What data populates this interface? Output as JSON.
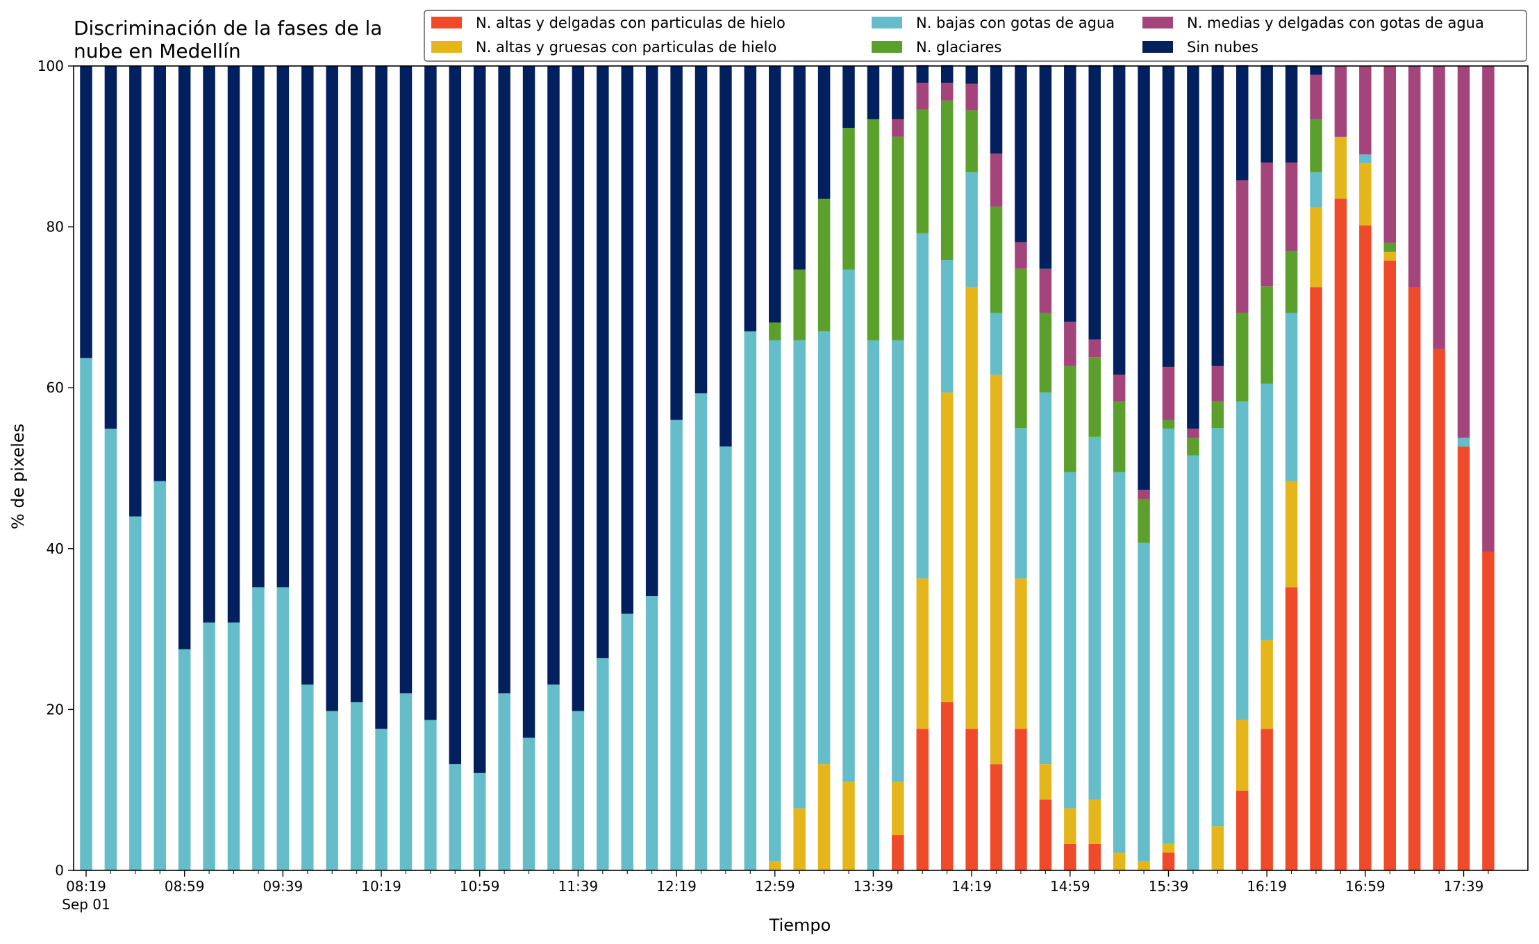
{
  "chart_data": {
    "type": "bar",
    "stacked": true,
    "title": "Discriminación de la fases de la\nnube en Medellín",
    "xlabel": "Tiempo",
    "ylabel": "% de pixeles",
    "ylim": [
      0,
      100
    ],
    "yticks": [
      "0",
      "20",
      "40",
      "60",
      "80",
      "100"
    ],
    "xtick_labels": [
      "08:19",
      "08:59",
      "09:39",
      "10:19",
      "10:59",
      "11:39",
      "12:19",
      "12:59",
      "13:39",
      "14:19",
      "14:59",
      "15:39",
      "16:19",
      "16:59",
      "17:39"
    ],
    "xtick_date": "Sep 01",
    "x": [
      "08:19",
      "08:29",
      "08:39",
      "08:49",
      "08:59",
      "09:09",
      "09:19",
      "09:29",
      "09:39",
      "09:49",
      "09:59",
      "10:09",
      "10:19",
      "10:29",
      "10:39",
      "10:49",
      "10:59",
      "11:09",
      "11:19",
      "11:29",
      "11:39",
      "11:49",
      "11:59",
      "12:09",
      "12:19",
      "12:29",
      "12:39",
      "12:49",
      "12:59",
      "13:09",
      "13:19",
      "13:29",
      "13:39",
      "13:49",
      "13:59",
      "14:09",
      "14:19",
      "14:29",
      "14:39",
      "14:49",
      "14:59",
      "15:09",
      "15:19",
      "15:29",
      "15:39",
      "15:49",
      "15:59",
      "16:09",
      "16:19",
      "16:29",
      "16:39",
      "16:49",
      "16:59",
      "17:09",
      "17:19",
      "17:29",
      "17:39",
      "17:49"
    ],
    "legend": {
      "placement": "top-right",
      "columns": 3
    },
    "series": [
      {
        "name": "N. altas y delgadas con particulas de hielo",
        "color": "#ef4a2a",
        "values": [
          0,
          0,
          0,
          0,
          0,
          0,
          0,
          0,
          0,
          0,
          0,
          0,
          0,
          0,
          0,
          0,
          0,
          0,
          0,
          0,
          0,
          0,
          0,
          0,
          0,
          0,
          0,
          0,
          0,
          0,
          0,
          0,
          0,
          4.4,
          17.6,
          20.9,
          17.6,
          13.2,
          17.6,
          8.8,
          3.3,
          3.3,
          0,
          0,
          2.2,
          0,
          0,
          9.9,
          17.6,
          35.2,
          72.5,
          83.5,
          80.2,
          75.8,
          72.5,
          64.8,
          52.7,
          39.6
        ]
      },
      {
        "name": "N. altas y gruesas con particulas de hielo",
        "color": "#e5b61c",
        "values": [
          0,
          0,
          0,
          0,
          0,
          0,
          0,
          0,
          0,
          0,
          0,
          0,
          0,
          0,
          0,
          0,
          0,
          0,
          0,
          0,
          0,
          0,
          0,
          0,
          0,
          0,
          0,
          0,
          1.1,
          7.7,
          13.2,
          11.0,
          0,
          6.6,
          18.7,
          38.5,
          54.9,
          48.4,
          18.7,
          4.4,
          4.4,
          5.5,
          2.2,
          1.1,
          1.1,
          0,
          5.5,
          8.8,
          11.0,
          13.2,
          9.9,
          7.7,
          7.7,
          1.1,
          0,
          0,
          0,
          0
        ]
      },
      {
        "name": "N. bajas con gotas de agua",
        "color": "#65bdc9",
        "values": [
          63.7,
          54.9,
          44.0,
          48.4,
          27.5,
          30.8,
          30.8,
          35.2,
          35.2,
          23.1,
          19.8,
          20.9,
          17.6,
          22.0,
          18.7,
          13.2,
          12.1,
          22.0,
          16.5,
          23.1,
          19.8,
          26.4,
          31.9,
          34.1,
          56.0,
          59.3,
          52.7,
          67.0,
          64.8,
          58.2,
          53.8,
          63.7,
          65.9,
          54.9,
          42.9,
          16.5,
          14.3,
          7.7,
          18.7,
          46.2,
          41.8,
          45.1,
          47.3,
          39.6,
          51.6,
          51.6,
          49.5,
          39.6,
          31.9,
          20.9,
          4.4,
          0,
          1.1,
          0,
          0,
          0,
          1.1,
          0
        ]
      },
      {
        "name": "N. glaciares",
        "color": "#5b9f2c",
        "values": [
          0,
          0,
          0,
          0,
          0,
          0,
          0,
          0,
          0,
          0,
          0,
          0,
          0,
          0,
          0,
          0,
          0,
          0,
          0,
          0,
          0,
          0,
          0,
          0,
          0,
          0,
          0,
          0,
          2.2,
          8.8,
          16.5,
          17.6,
          27.5,
          25.3,
          15.4,
          19.8,
          7.7,
          13.2,
          19.8,
          9.9,
          13.2,
          9.9,
          8.8,
          5.5,
          1.1,
          2.2,
          3.3,
          11.0,
          12.1,
          7.7,
          6.6,
          0,
          0,
          1.1,
          0,
          0,
          0,
          0
        ]
      },
      {
        "name": "N. medias y delgadas con gotas de agua",
        "color": "#a3457b",
        "values": [
          0,
          0,
          0,
          0,
          0,
          0,
          0,
          0,
          0,
          0,
          0,
          0,
          0,
          0,
          0,
          0,
          0,
          0,
          0,
          0,
          0,
          0,
          0,
          0,
          0,
          0,
          0,
          0,
          0,
          0,
          0,
          0,
          0,
          2.2,
          3.3,
          2.2,
          3.3,
          6.6,
          3.3,
          5.5,
          5.5,
          2.2,
          3.3,
          1.1,
          6.6,
          1.1,
          4.4,
          16.5,
          15.4,
          11.0,
          5.5,
          8.8,
          11.0,
          22.0,
          27.5,
          35.2,
          46.2,
          60.4
        ]
      },
      {
        "name": "Sin nubes",
        "color": "#03205e",
        "values": [
          36.3,
          45.1,
          56.0,
          51.6,
          72.5,
          69.2,
          69.2,
          64.8,
          64.8,
          76.9,
          80.2,
          79.1,
          82.4,
          78.0,
          81.3,
          86.8,
          87.9,
          78.0,
          83.5,
          76.9,
          80.2,
          73.6,
          68.1,
          65.9,
          44.0,
          40.7,
          47.3,
          33.0,
          31.9,
          25.3,
          16.5,
          7.7,
          6.6,
          6.6,
          2.2,
          2.2,
          2.2,
          11.0,
          22.0,
          25.3,
          31.9,
          34.1,
          38.5,
          52.7,
          37.4,
          45.1,
          37.4,
          14.3,
          12.1,
          12.1,
          1.1,
          0,
          0,
          0,
          0,
          0,
          0,
          0
        ]
      }
    ]
  }
}
